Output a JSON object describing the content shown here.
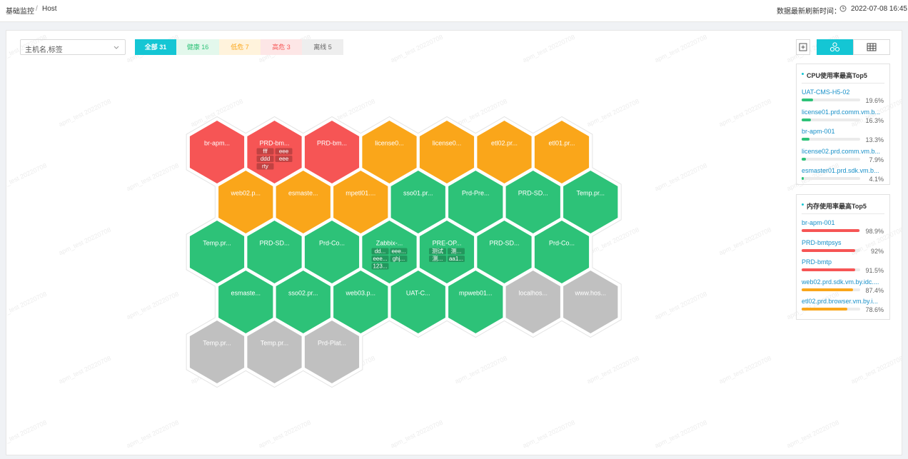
{
  "breadcrumb": [
    "基础监控",
    "Host"
  ],
  "refresh": {
    "label": "数据最新刷新时间：",
    "time": "2022-07-08 16:45"
  },
  "search_placeholder": "主机名,标签",
  "filters": [
    "全部 31",
    "健康 16",
    "低危 7",
    "高危 3",
    "离线 5"
  ],
  "watermark": "apm_test 20220708",
  "hexagons": [
    [
      {
        "label": "br-apm...",
        "color": "#f65555"
      },
      {
        "label": "PRD-bm...",
        "color": "#f65555",
        "tags": [
          "fff",
          "eee",
          "ddd",
          "eee",
          "rty"
        ]
      },
      {
        "label": "PRD-bm...",
        "color": "#f65555"
      },
      {
        "label": "license0...",
        "color": "#faa61a"
      },
      {
        "label": "license0...",
        "color": "#faa61a"
      },
      {
        "label": "etl02.pr...",
        "color": "#faa61a"
      },
      {
        "label": "etl01.pr...",
        "color": "#faa61a"
      }
    ],
    [
      {
        "label": "web02.p...",
        "color": "#faa61a"
      },
      {
        "label": "esmaste...",
        "color": "#faa61a"
      },
      {
        "label": "mpetl01....",
        "color": "#faa61a"
      },
      {
        "label": "sso01.pr...",
        "color": "#2dc278"
      },
      {
        "label": "Prd-Pre...",
        "color": "#2dc278"
      },
      {
        "label": "PRD-SD...",
        "color": "#2dc278"
      },
      {
        "label": "Temp.pr...",
        "color": "#2dc278"
      }
    ],
    [
      {
        "label": "Temp.pr...",
        "color": "#2dc278"
      },
      {
        "label": "PRD-SD...",
        "color": "#2dc278"
      },
      {
        "label": "Prd-Co...",
        "color": "#2dc278"
      },
      {
        "label": "Zabbix-...",
        "color": "#2dc278",
        "tags": [
          "dd...",
          "eee...",
          "eee...",
          "ghj...",
          "123..."
        ]
      },
      {
        "label": "PRE-OP...",
        "color": "#2dc278",
        "tags": [
          "测试",
          "测...",
          "测...",
          "aa1..."
        ]
      },
      {
        "label": "PRD-SD...",
        "color": "#2dc278"
      },
      {
        "label": "Prd-Co...",
        "color": "#2dc278"
      }
    ],
    [
      {
        "label": "esmaste...",
        "color": "#2dc278"
      },
      {
        "label": "sso02.pr...",
        "color": "#2dc278"
      },
      {
        "label": "web03.p...",
        "color": "#2dc278"
      },
      {
        "label": "UAT-C...",
        "color": "#2dc278"
      },
      {
        "label": "mpweb01...",
        "color": "#2dc278"
      },
      {
        "label": "localhos...",
        "color": "#c0c0c0"
      },
      {
        "label": "www.hos...",
        "color": "#c0c0c0"
      }
    ],
    [
      {
        "label": "Temp.pr...",
        "color": "#c0c0c0"
      },
      {
        "label": "Temp.pr...",
        "color": "#c0c0c0"
      },
      {
        "label": "Prd-Plat...",
        "color": "#c0c0c0"
      }
    ]
  ],
  "panels": [
    {
      "title": "CPU使用率最高Top5",
      "items": [
        {
          "name": "UAT-CMS-H5-02",
          "value": 19.6,
          "value_label": "19.6%",
          "color": "#2dc278"
        },
        {
          "name": "license01.prd.comm.vm.b...",
          "value": 16.3,
          "value_label": "16.3%",
          "color": "#2dc278"
        },
        {
          "name": "br-apm-001",
          "value": 13.3,
          "value_label": "13.3%",
          "color": "#2dc278"
        },
        {
          "name": "license02.prd.comm.vm.b...",
          "value": 7.9,
          "value_label": "7.9%",
          "color": "#2dc278"
        },
        {
          "name": "esmaster01.prd.sdk.vm.b...",
          "value": 4.1,
          "value_label": "4.1%",
          "color": "#2dc278"
        }
      ]
    },
    {
      "title": "内存使用率最高Top5",
      "items": [
        {
          "name": "br-apm-001",
          "value": 98.9,
          "value_label": "98.9%",
          "color": "#f65555"
        },
        {
          "name": "PRD-bmtpsys",
          "value": 92,
          "value_label": "92%",
          "color": "#f65555"
        },
        {
          "name": "PRD-bmtp",
          "value": 91.5,
          "value_label": "91.5%",
          "color": "#f65555"
        },
        {
          "name": "web02.prd.sdk.vm.by.idc....",
          "value": 87.4,
          "value_label": "87.4%",
          "color": "#faa61a"
        },
        {
          "name": "etl02.prd.browser.vm.by.i...",
          "value": 78.6,
          "value_label": "78.6%",
          "color": "#faa61a"
        }
      ]
    }
  ]
}
